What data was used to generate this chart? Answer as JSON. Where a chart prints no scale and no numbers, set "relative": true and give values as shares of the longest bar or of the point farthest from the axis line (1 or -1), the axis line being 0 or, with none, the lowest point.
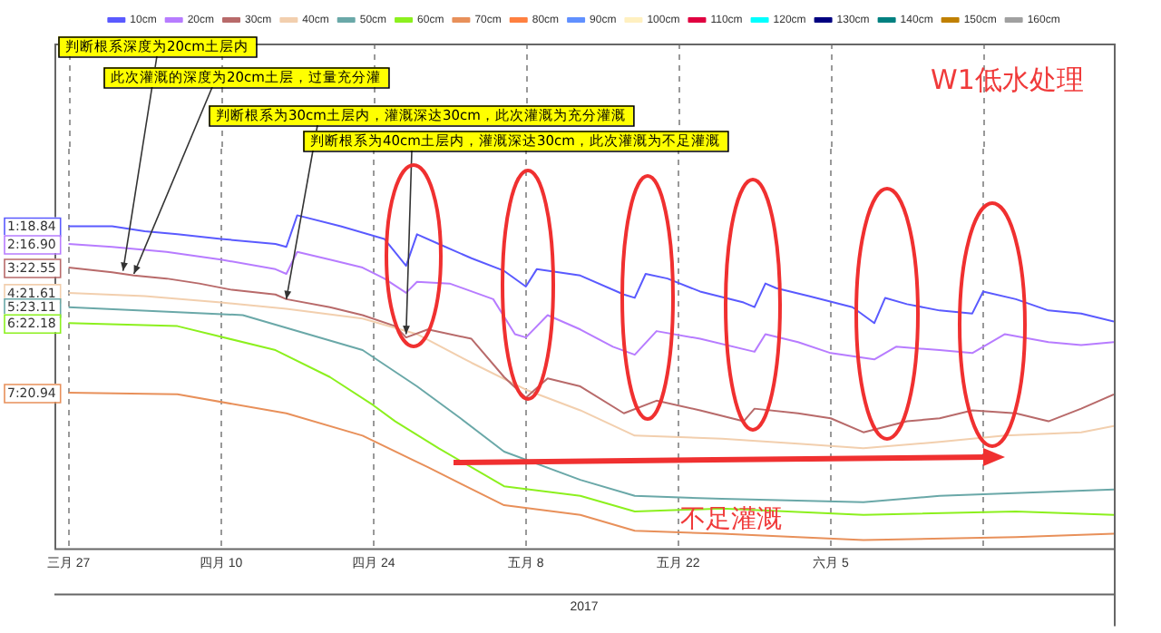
{
  "chart_data": {
    "type": "line",
    "title": "W1低水处理",
    "xlabel": "2017",
    "relative": true,
    "grid": "x",
    "legend": "top",
    "xlim": [
      "2017-03-26",
      "2017-07-01"
    ],
    "xticks": [
      {
        "value": "2017-03-27",
        "label": "三月 27"
      },
      {
        "value": "2017-04-10",
        "label": "四月 10"
      },
      {
        "value": "2017-04-24",
        "label": "四月 24"
      },
      {
        "value": "2017-05-08",
        "label": "五月 8"
      },
      {
        "value": "2017-05-22",
        "label": "五月 22"
      },
      {
        "value": "2017-06-05",
        "label": "六月 5"
      },
      {
        "value": "2017-06-19",
        "label": null
      }
    ],
    "series": [
      {
        "name": "10cm",
        "color": "#5a5aff",
        "x": [
          "2017-03-27",
          "2017-03-31",
          "2017-04-03",
          "2017-04-06",
          "2017-04-10",
          "2017-04-15",
          "2017-04-16",
          "2017-04-17",
          "2017-04-21",
          "2017-04-25",
          "2017-04-27",
          "2017-04-28",
          "2017-04-30",
          "2017-05-03",
          "2017-05-06",
          "2017-05-08",
          "2017-05-09",
          "2017-05-13",
          "2017-05-17",
          "2017-05-18",
          "2017-05-19",
          "2017-05-21",
          "2017-05-24",
          "2017-05-28",
          "2017-05-29",
          "2017-05-30",
          "2017-05-31",
          "2017-06-03",
          "2017-06-07",
          "2017-06-09",
          "2017-06-10",
          "2017-06-12",
          "2017-06-15",
          "2017-06-18",
          "2017-06-19",
          "2017-06-22",
          "2017-06-25",
          "2017-06-28",
          "2017-07-01"
        ],
        "values": [
          0.967,
          0.967,
          0.952,
          0.943,
          0.929,
          0.914,
          0.905,
          1,
          0.967,
          0.929,
          0.848,
          0.943,
          0.914,
          0.871,
          0.833,
          0.786,
          0.838,
          0.819,
          0.762,
          0.752,
          0.824,
          0.81,
          0.771,
          0.738,
          0.724,
          0.795,
          0.781,
          0.757,
          0.724,
          0.676,
          0.752,
          0.733,
          0.714,
          0.705,
          0.771,
          0.748,
          0.714,
          0.705,
          0.681
        ]
      },
      {
        "name": "20cm",
        "color": "#b77cff",
        "x": [
          "2017-03-27",
          "2017-03-31",
          "2017-04-05",
          "2017-04-10",
          "2017-04-15",
          "2017-04-16",
          "2017-04-17",
          "2017-04-20",
          "2017-04-23",
          "2017-04-25",
          "2017-04-27",
          "2017-04-28",
          "2017-05-01",
          "2017-05-05",
          "2017-05-07",
          "2017-05-08",
          "2017-05-10",
          "2017-05-13",
          "2017-05-16",
          "2017-05-18",
          "2017-05-20",
          "2017-05-24",
          "2017-05-29",
          "2017-05-30",
          "2017-06-02",
          "2017-06-05",
          "2017-06-09",
          "2017-06-11",
          "2017-06-15",
          "2017-06-18",
          "2017-06-21",
          "2017-06-25",
          "2017-06-28",
          "2017-07-01"
        ],
        "values": [
          0.914,
          0.905,
          0.89,
          0.867,
          0.838,
          0.824,
          0.89,
          0.867,
          0.843,
          0.81,
          0.767,
          0.8,
          0.795,
          0.748,
          0.643,
          0.633,
          0.7,
          0.657,
          0.605,
          0.581,
          0.652,
          0.629,
          0.59,
          0.643,
          0.619,
          0.586,
          0.567,
          0.605,
          0.595,
          0.586,
          0.643,
          0.619,
          0.61,
          0.619
        ]
      },
      {
        "name": "30cm",
        "color": "#b86a6a",
        "x": [
          "2017-03-27",
          "2017-03-31",
          "2017-04-02",
          "2017-04-05",
          "2017-04-08",
          "2017-04-11",
          "2017-04-15",
          "2017-04-16",
          "2017-04-20",
          "2017-04-23",
          "2017-04-26",
          "2017-04-27",
          "2017-04-29",
          "2017-05-03",
          "2017-05-06",
          "2017-05-08",
          "2017-05-10",
          "2017-05-13",
          "2017-05-17",
          "2017-05-20",
          "2017-05-24",
          "2017-05-28",
          "2017-05-29",
          "2017-06-02",
          "2017-06-05",
          "2017-06-08",
          "2017-06-12",
          "2017-06-15",
          "2017-06-18",
          "2017-06-22",
          "2017-06-25",
          "2017-06-28",
          "2017-07-01"
        ],
        "values": [
          0.843,
          0.829,
          0.819,
          0.81,
          0.795,
          0.776,
          0.762,
          0.748,
          0.724,
          0.7,
          0.667,
          0.633,
          0.657,
          0.629,
          0.514,
          0.452,
          0.51,
          0.486,
          0.405,
          0.443,
          0.414,
          0.381,
          0.419,
          0.405,
          0.39,
          0.348,
          0.381,
          0.39,
          0.414,
          0.405,
          0.381,
          0.419,
          0.462
        ]
      },
      {
        "name": "40cm",
        "color": "#f2cfae",
        "x": [
          "2017-03-27",
          "2017-04-03",
          "2017-04-10",
          "2017-04-16",
          "2017-04-23",
          "2017-04-28",
          "2017-05-03",
          "2017-05-08",
          "2017-05-13",
          "2017-05-18",
          "2017-05-26",
          "2017-06-02",
          "2017-06-08",
          "2017-06-15",
          "2017-06-21",
          "2017-06-28",
          "2017-07-01"
        ],
        "values": [
          0.767,
          0.757,
          0.738,
          0.719,
          0.69,
          0.643,
          0.557,
          0.476,
          0.414,
          0.338,
          0.329,
          0.314,
          0.3,
          0.319,
          0.338,
          0.348,
          0.367
        ]
      },
      {
        "name": "50cm",
        "color": "#6aa8a8",
        "x": [
          "2017-03-27",
          "2017-04-12",
          "2017-04-23",
          "2017-04-28",
          "2017-05-02",
          "2017-05-06",
          "2017-05-13",
          "2017-05-18",
          "2017-05-26",
          "2017-06-08",
          "2017-06-15",
          "2017-07-01"
        ],
        "values": [
          0.724,
          0.7,
          0.595,
          0.486,
          0.39,
          0.29,
          0.205,
          0.157,
          0.148,
          0.138,
          0.157,
          0.176
        ]
      },
      {
        "name": "60cm",
        "color": "#8cf01e",
        "x": [
          "2017-03-27",
          "2017-04-06",
          "2017-04-15",
          "2017-04-20",
          "2017-04-24",
          "2017-04-26",
          "2017-04-30",
          "2017-05-06",
          "2017-05-13",
          "2017-05-18",
          "2017-05-26",
          "2017-06-08",
          "2017-06-22",
          "2017-07-01"
        ],
        "values": [
          0.676,
          0.667,
          0.595,
          0.514,
          0.429,
          0.381,
          0.3,
          0.186,
          0.157,
          0.11,
          0.119,
          0.1,
          0.11,
          0.1
        ]
      },
      {
        "name": "70cm",
        "color": "#e8905a",
        "x": [
          "2017-03-27",
          "2017-04-06",
          "2017-04-16",
          "2017-04-23",
          "2017-04-29",
          "2017-05-06",
          "2017-05-13",
          "2017-05-18",
          "2017-05-26",
          "2017-06-08",
          "2017-06-22",
          "2017-07-01"
        ],
        "values": [
          0.467,
          0.462,
          0.405,
          0.338,
          0.243,
          0.129,
          0.1,
          0.052,
          0.043,
          0.024,
          0.033,
          0.043
        ]
      },
      {
        "name": "80cm",
        "color": "#ff8040"
      },
      {
        "name": "90cm",
        "color": "#6090ff"
      },
      {
        "name": "100cm",
        "color": "#fff0c0"
      },
      {
        "name": "110cm",
        "color": "#e00040"
      },
      {
        "name": "120cm",
        "color": "#00ffff"
      },
      {
        "name": "130cm",
        "color": "#000080"
      },
      {
        "name": "140cm",
        "color": "#008080"
      },
      {
        "name": "150cm",
        "color": "#c08000"
      },
      {
        "name": "160cm",
        "color": "#a0a0a0"
      }
    ],
    "annotations": [
      {
        "text": "判断根系深度为20cm土层内",
        "x": "2017-04-01",
        "y": 0.833
      },
      {
        "text": "此次灌溉的深度为20cm土层，过量充分灌",
        "x": "2017-04-02",
        "y": 0.824
      },
      {
        "text": "判断根系为30cm土层内，灌溉深达30cm，此次灌溉为充分灌溉",
        "x": "2017-04-16",
        "y": 0.748
      },
      {
        "text": "判断根系为40cm土层内，灌溉深达30cm，此次灌溉为不足灌溉",
        "x": "2017-04-27",
        "y": 0.643
      },
      "不足灌溉",
      "1:18.84",
      "2:16.90",
      "3:22.55",
      "4:21.61",
      "5:23.11",
      "6:22.18",
      "7:20.94"
    ]
  }
}
